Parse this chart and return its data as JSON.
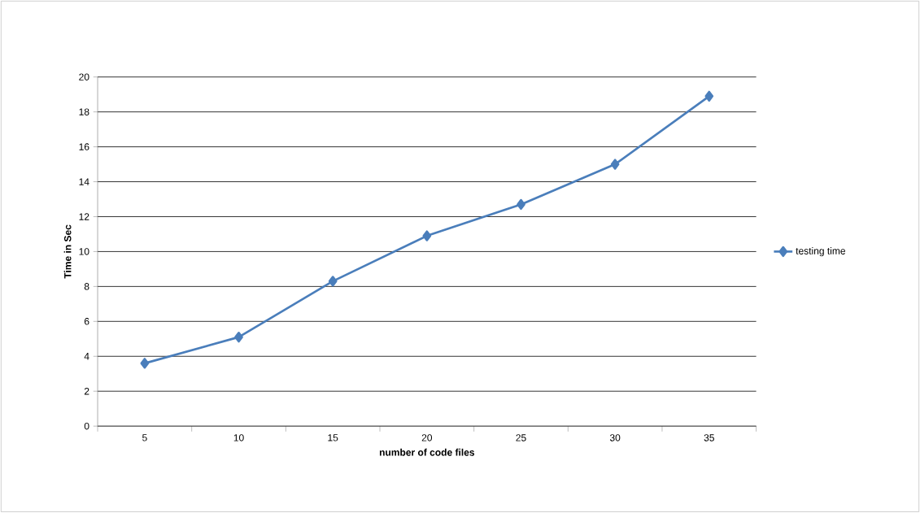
{
  "chart_data": {
    "type": "line",
    "xlabel": "number of code files",
    "ylabel": "Time in Sec",
    "categories": [
      "5",
      "10",
      "15",
      "20",
      "25",
      "30",
      "35"
    ],
    "series": [
      {
        "name": "testing time",
        "color": "#4a7ebb",
        "values": [
          3.6,
          5.1,
          8.3,
          10.9,
          12.7,
          15.0,
          18.9
        ]
      }
    ],
    "ylim": [
      0,
      20
    ],
    "yticks": [
      0,
      2,
      4,
      6,
      8,
      10,
      12,
      14,
      16,
      18,
      20
    ],
    "grid": "y",
    "legend": "right",
    "marker": "diamond",
    "line_style": "solid"
  }
}
